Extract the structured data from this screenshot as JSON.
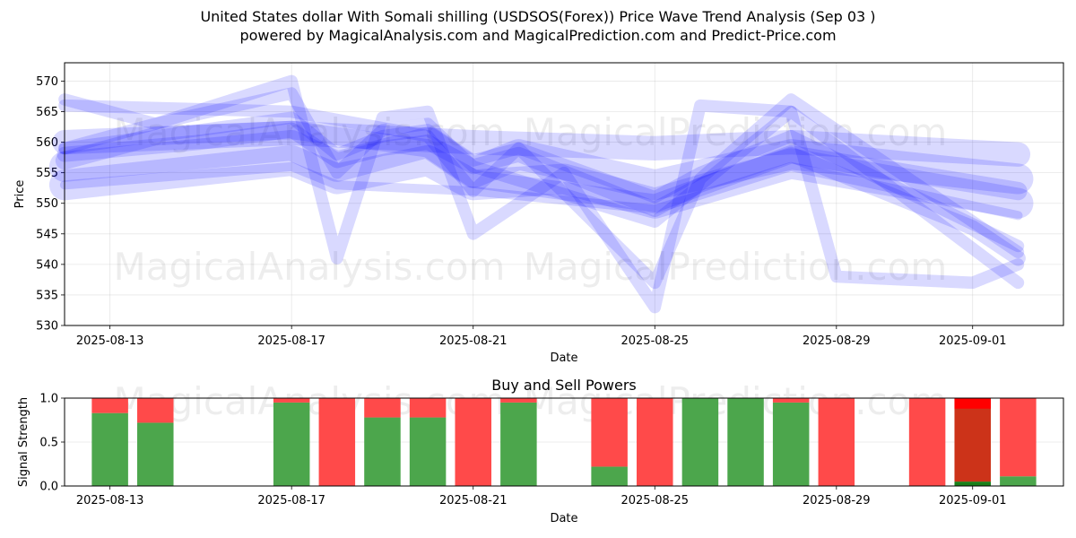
{
  "title": "United States dollar With Somali shilling (USDSOS(Forex)) Price Wave Trend Analysis (Sep 03 )",
  "subtitle": "powered by MagicalAnalysis.com and MagicalPrediction.com and Predict-Price.com",
  "watermarks": [
    "MagicalAnalysis.com",
    "MagicalPrediction.com"
  ],
  "colors": {
    "wave": "#0000ff",
    "buy": "#4ca64c",
    "sell": "#ff4a4a",
    "sell_dark": "#cc3319",
    "buy_dark": "#1a7f1a",
    "sell_bright": "#ff0000"
  },
  "chart_data": [
    {
      "type": "area",
      "xlabel": "Date",
      "ylabel": "Price",
      "xlim": [
        "2025-08-12",
        "2025-09-03"
      ],
      "ylim": [
        530,
        573
      ],
      "x_ticks": [
        "2025-08-13",
        "2025-08-17",
        "2025-08-21",
        "2025-08-25",
        "2025-08-29",
        "2025-09-01"
      ],
      "y_ticks": [
        530,
        535,
        540,
        545,
        550,
        555,
        560,
        565,
        570
      ],
      "grid": true,
      "series": [
        {
          "x": [
            "2025-08-12",
            "2025-08-17",
            "2025-08-21",
            "2025-08-25",
            "2025-08-28",
            "2025-09-02"
          ],
          "y": [
            560.0,
            561.5,
            560.0,
            559.0,
            560.0,
            558.0
          ],
          "width": 4.0
        },
        {
          "x": [
            "2025-08-12",
            "2025-08-17",
            "2025-08-18",
            "2025-08-20",
            "2025-08-21",
            "2025-08-22",
            "2025-08-25",
            "2025-08-28",
            "2025-09-02"
          ],
          "y": [
            556.0,
            559.5,
            556.0,
            560.0,
            555.0,
            558.0,
            553.0,
            558.0,
            554.0
          ],
          "width": 5.0
        },
        {
          "x": [
            "2025-08-12",
            "2025-08-17",
            "2025-08-18",
            "2025-08-20",
            "2025-08-21",
            "2025-08-23",
            "2025-08-25",
            "2025-08-28",
            "2025-09-02"
          ],
          "y": [
            553.0,
            557.0,
            554.0,
            557.0,
            553.0,
            554.0,
            550.0,
            556.5,
            550.0
          ],
          "width": 5.0
        },
        {
          "x": [
            "2025-08-12",
            "2025-08-15",
            "2025-08-17",
            "2025-08-18",
            "2025-08-19",
            "2025-08-20",
            "2025-08-21",
            "2025-08-22",
            "2025-08-25",
            "2025-08-26",
            "2025-08-28",
            "2025-09-01",
            "2025-09-02"
          ],
          "y": [
            558.0,
            560.0,
            562.0,
            557.0,
            559.0,
            560.0,
            556.0,
            558.0,
            549.0,
            553.0,
            558.0,
            546.0,
            541.0
          ],
          "width": 2.5
        },
        {
          "x": [
            "2025-08-12",
            "2025-08-15",
            "2025-08-17",
            "2025-08-18",
            "2025-08-19",
            "2025-08-20",
            "2025-08-21",
            "2025-08-22",
            "2025-08-25",
            "2025-08-26",
            "2025-08-28",
            "2025-09-02"
          ],
          "y": [
            559.0,
            562.0,
            564.0,
            558.0,
            561.0,
            562.0,
            557.0,
            559.0,
            551.0,
            555.0,
            561.0,
            543.0
          ],
          "width": 2.0
        },
        {
          "x": [
            "2025-08-12",
            "2025-08-17",
            "2025-08-18",
            "2025-08-21",
            "2025-08-25",
            "2025-08-28",
            "2025-09-02"
          ],
          "y": [
            553.0,
            556.0,
            553.0,
            552.0,
            549.0,
            556.0,
            548.0
          ],
          "width": 1.5
        },
        {
          "x": [
            "2025-08-12",
            "2025-08-14",
            "2025-08-17",
            "2025-08-18",
            "2025-08-19",
            "2025-08-20",
            "2025-08-21",
            "2025-08-25",
            "2025-08-28",
            "2025-09-02"
          ],
          "y": [
            559.0,
            563.0,
            568.0,
            555.0,
            562.0,
            563.0,
            556.0,
            547.0,
            565.0,
            537.0
          ],
          "width": 2.0
        },
        {
          "x": [
            "2025-08-12",
            "2025-08-14",
            "2025-08-17",
            "2025-08-18",
            "2025-08-19",
            "2025-08-20",
            "2025-08-21",
            "2025-08-23",
            "2025-08-25",
            "2025-08-26",
            "2025-08-28",
            "2025-08-29",
            "2025-09-01",
            "2025-09-02"
          ],
          "y": [
            567.0,
            563.0,
            570.0,
            541.0,
            564.0,
            565.0,
            545.0,
            555.0,
            533.0,
            566.0,
            565.0,
            538.0,
            537.0,
            540.0
          ],
          "width": 2.0
        },
        {
          "x": [
            "2025-08-12",
            "2025-08-17",
            "2025-08-20",
            "2025-08-21",
            "2025-08-22",
            "2025-08-25",
            "2025-08-26",
            "2025-08-28",
            "2025-09-02"
          ],
          "y": [
            566.0,
            565.0,
            561.0,
            552.0,
            559.0,
            537.0,
            554.0,
            567.0,
            542.0
          ],
          "width": 2.0
        },
        {
          "x": [
            "2025-08-12",
            "2025-08-14",
            "2025-08-17",
            "2025-08-20",
            "2025-08-21",
            "2025-08-25",
            "2025-08-28",
            "2025-09-02"
          ],
          "y": [
            557.0,
            561.0,
            562.0,
            559.0,
            554.0,
            550.0,
            558.0,
            552.0
          ],
          "width": 3.0
        }
      ]
    },
    {
      "type": "bar",
      "title": "Buy and Sell Powers",
      "xlabel": "Date",
      "ylabel": "Signal Strength",
      "xlim": [
        "2025-08-12",
        "2025-09-03"
      ],
      "ylim": [
        0,
        1
      ],
      "x_ticks": [
        "2025-08-13",
        "2025-08-17",
        "2025-08-21",
        "2025-08-25",
        "2025-08-29",
        "2025-09-01"
      ],
      "y_ticks": [
        "0.0",
        "0.5",
        "1.0"
      ],
      "grid": true,
      "series": [
        {
          "name": "buy",
          "x": [
            "2025-08-13",
            "2025-08-14",
            "2025-08-17",
            "2025-08-18",
            "2025-08-19",
            "2025-08-20",
            "2025-08-21",
            "2025-08-22",
            "2025-08-24",
            "2025-08-25",
            "2025-08-26",
            "2025-08-27",
            "2025-08-28",
            "2025-08-29",
            "2025-08-31",
            "2025-09-01",
            "2025-09-02"
          ],
          "values": [
            0.83,
            0.72,
            0.95,
            0.0,
            0.78,
            0.78,
            0.0,
            0.95,
            0.22,
            0.0,
            1.0,
            1.0,
            0.95,
            0.0,
            0.0,
            0.05,
            0.11
          ]
        },
        {
          "name": "sell",
          "x": [
            "2025-08-13",
            "2025-08-14",
            "2025-08-17",
            "2025-08-18",
            "2025-08-19",
            "2025-08-20",
            "2025-08-21",
            "2025-08-22",
            "2025-08-24",
            "2025-08-25",
            "2025-08-26",
            "2025-08-27",
            "2025-08-28",
            "2025-08-29",
            "2025-08-31",
            "2025-09-01",
            "2025-09-02"
          ],
          "values": [
            0.17,
            0.28,
            0.05,
            1.0,
            0.22,
            0.22,
            1.0,
            0.05,
            0.78,
            1.0,
            0.0,
            0.0,
            0.05,
            1.0,
            1.0,
            0.95,
            0.89
          ]
        }
      ]
    }
  ]
}
